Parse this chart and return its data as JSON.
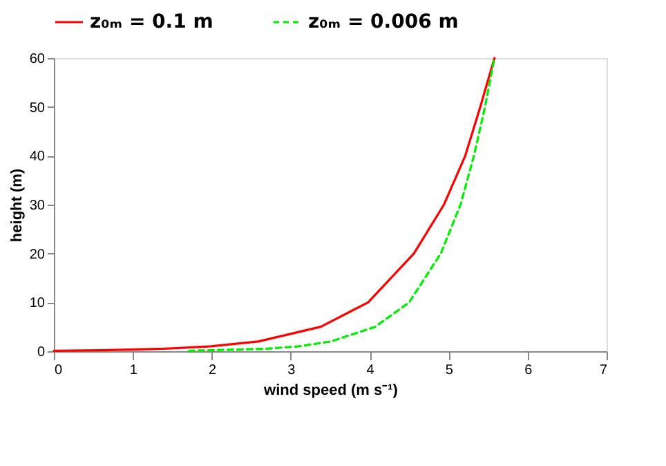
{
  "chart_data": {
    "type": "line",
    "xlabel": "wind speed (m s⁻¹)",
    "ylabel": "height (m)",
    "xlim": [
      0,
      7
    ],
    "ylim": [
      0,
      60
    ],
    "xticks": [
      0,
      1,
      2,
      3,
      4,
      5,
      6,
      7
    ],
    "yticks": [
      0,
      10,
      20,
      30,
      40,
      50,
      60
    ],
    "grid": false,
    "legend": "top",
    "marker": "none",
    "series": [
      {
        "name": "z₀ₘ = 0.1 m",
        "color": "#ff0000",
        "line_style": "solid",
        "x": [
          0.0,
          0.6,
          1.39,
          1.99,
          2.59,
          3.38,
          3.98,
          4.56,
          4.94,
          5.21,
          5.4,
          5.58
        ],
        "values": [
          0.1,
          0.2,
          0.5,
          1,
          2,
          5,
          10,
          20,
          30,
          40,
          50,
          60
        ]
      },
      {
        "name": "z₀ₘ = 0.006 m",
        "color": "#00ee00",
        "line_style": "dashed",
        "x": [
          1.71,
          2.68,
          3.1,
          3.51,
          4.07,
          4.5,
          4.9,
          5.15,
          5.32,
          5.46,
          5.58
        ],
        "values": [
          0.1,
          0.5,
          1,
          2,
          5,
          10,
          20,
          30,
          40,
          50,
          60
        ]
      }
    ]
  }
}
